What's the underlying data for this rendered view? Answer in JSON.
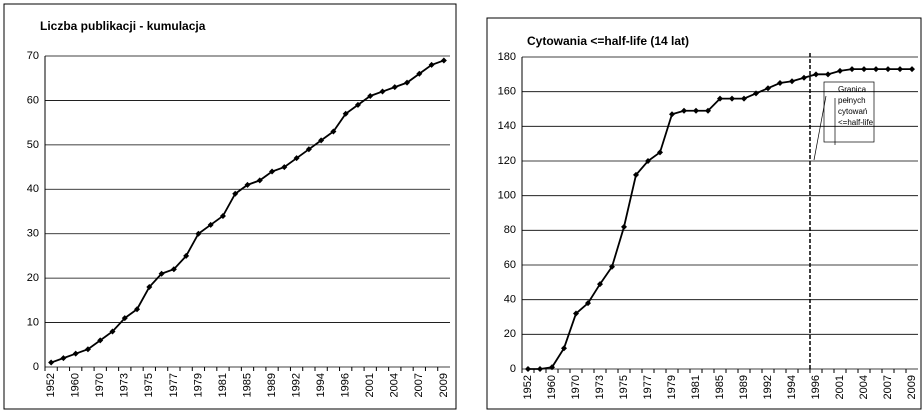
{
  "chart_data": [
    {
      "type": "line",
      "title": "Liczba publikacji - kumulacja",
      "categories": [
        "1952",
        null,
        "1960",
        null,
        "1970",
        null,
        "1973",
        null,
        "1975",
        null,
        "1977",
        null,
        "1979",
        null,
        "1981",
        null,
        "1985",
        null,
        "1989",
        null,
        "1992",
        null,
        "1994",
        null,
        "1996",
        null,
        "2001",
        null,
        "2004",
        null,
        "2007",
        null,
        "2009"
      ],
      "series": [
        {
          "name": "Liczba publikacji",
          "color": "#000000",
          "values": [
            1,
            2,
            3,
            4,
            6,
            8,
            11,
            13,
            18,
            21,
            22,
            25,
            30,
            32,
            34,
            39,
            41,
            42,
            44,
            45,
            47,
            49,
            51,
            53,
            57,
            59,
            61,
            62,
            63,
            64,
            66,
            68,
            69
          ]
        }
      ],
      "ylim": [
        0,
        70
      ],
      "yticks": [
        0,
        10,
        20,
        30,
        40,
        50,
        60,
        70
      ],
      "grid": true
    },
    {
      "type": "line",
      "title": "Cytowania <=half-life (14 lat)",
      "categories": [
        "1952",
        null,
        "1960",
        null,
        "1970",
        null,
        "1973",
        null,
        "1975",
        null,
        "1977",
        null,
        "1979",
        null,
        "1981",
        null,
        "1985",
        null,
        "1989",
        null,
        "1992",
        null,
        "1994",
        null,
        "1996",
        null,
        "2001",
        null,
        "2004",
        null,
        "2007",
        null,
        "2009"
      ],
      "series": [
        {
          "name": "Cytowania",
          "color": "#000000",
          "values": [
            0,
            0,
            1,
            12,
            32,
            38,
            49,
            59,
            82,
            112,
            120,
            125,
            147,
            149,
            149,
            149,
            156,
            156,
            156,
            159,
            162,
            165,
            166,
            168,
            170,
            170,
            172,
            173,
            173,
            173,
            173,
            173,
            173
          ]
        }
      ],
      "ylim": [
        0,
        180
      ],
      "yticks": [
        0,
        20,
        40,
        60,
        80,
        100,
        120,
        140,
        160,
        180
      ],
      "grid": true,
      "annotation": [
        "Granica",
        "pełnych",
        "cytowań",
        "<=half-life"
      ]
    }
  ]
}
